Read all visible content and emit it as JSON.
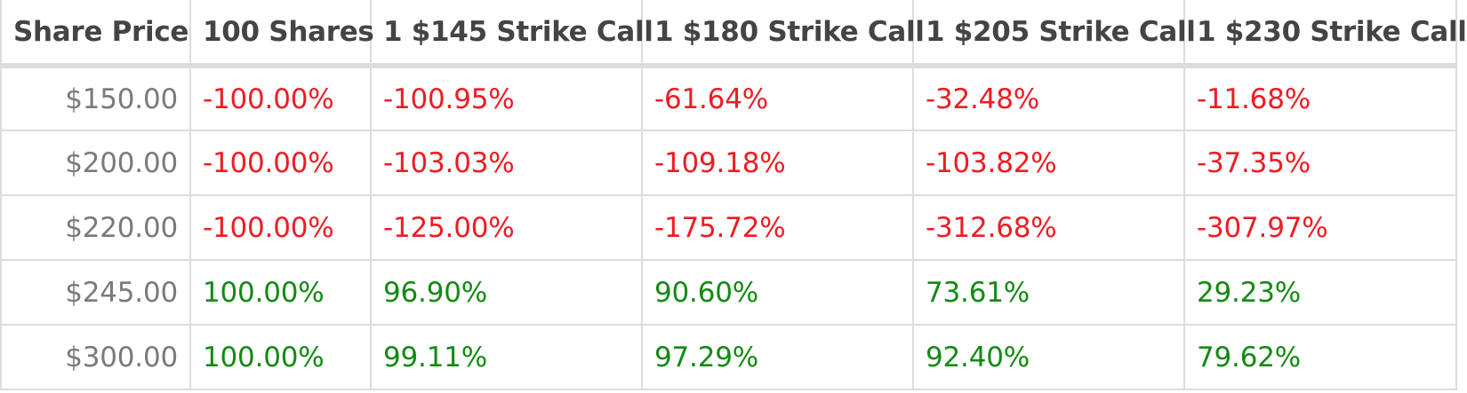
{
  "colors": {
    "negative": "#ee1c24",
    "positive": "#138a13",
    "header_text": "#444444",
    "price_text": "#7a7a7a",
    "grid": "#dcdcdc"
  },
  "table": {
    "headers": [
      "Share Price",
      "100 Shares",
      "1 $145 Strike Call",
      "1 $180 Strike Call",
      "1 $205 Strike Call",
      "1 $230 Strike Call"
    ],
    "rows": [
      {
        "price": "$150.00",
        "sign": "neg",
        "values": [
          "-100.00%",
          "-100.95%",
          "-61.64%",
          "-32.48%",
          "-11.68%"
        ]
      },
      {
        "price": "$200.00",
        "sign": "neg",
        "values": [
          "-100.00%",
          "-103.03%",
          "-109.18%",
          "-103.82%",
          "-37.35%"
        ]
      },
      {
        "price": "$220.00",
        "sign": "neg",
        "values": [
          "-100.00%",
          "-125.00%",
          "-175.72%",
          "-312.68%",
          "-307.97%"
        ]
      },
      {
        "price": "$245.00",
        "sign": "pos",
        "values": [
          "100.00%",
          "96.90%",
          "90.60%",
          "73.61%",
          "29.23%"
        ]
      },
      {
        "price": "$300.00",
        "sign": "pos",
        "values": [
          "100.00%",
          "99.11%",
          "97.29%",
          "92.40%",
          "79.62%"
        ]
      }
    ]
  }
}
